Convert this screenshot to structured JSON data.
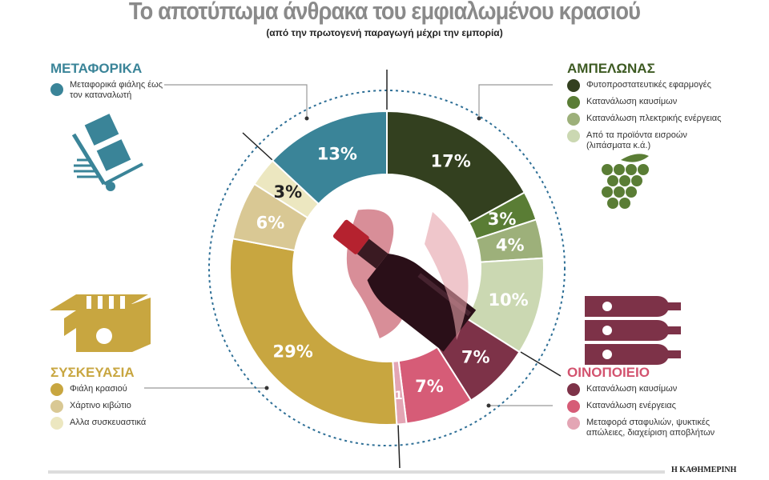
{
  "title": "Το αποτύπωμα άνθρακα του εμφιαλωμένου κρασιού",
  "subtitle": "(από την πρωτογενή παραγωγή μέχρι την εμπορία)",
  "brand": "Η ΚΑΘΗΜΕΡΙΝΗ",
  "legends": {
    "transport": {
      "heading": "ΜΕΤΑΦΟΡΙΚΑ",
      "color": "#3a8498",
      "items": [
        {
          "label": "Μεταφορικά φιάλης έως τον καταναλωτή",
          "color": "#3a8498"
        }
      ],
      "icon": "hand-truck-icon"
    },
    "vineyard": {
      "heading": "ΑΜΠΕΛΩΝΑΣ",
      "color": "#3d5a22",
      "items": [
        {
          "label": "Φυτοπροστατευτικές εφαρμογές",
          "color": "#33401f"
        },
        {
          "label": "Κατανάλωση καυσίμων",
          "color": "#5a7d35"
        },
        {
          "label": "Κατανάλωση πλεκτρικής ενέργειας",
          "color": "#9db07a"
        },
        {
          "label": "Από τα προϊόντα εισροών (λιπάσματα κ.ά.)",
          "color": "#cbd8b2"
        }
      ],
      "icon": "grapes-icon"
    },
    "packaging": {
      "heading": "ΣΥΣΚΕΥΑΣΙΑ",
      "color": "#c8a640",
      "items": [
        {
          "label": "Φιάλη κρασιού",
          "color": "#c8a640"
        },
        {
          "label": "Χάρτινο κιβώτιο",
          "color": "#d9c894"
        },
        {
          "label": "Αλλα συσκευαστικά",
          "color": "#ece7c0"
        }
      ],
      "icon": "wine-crate-icon"
    },
    "winery": {
      "heading": "ΟΙΝΟΠΟΙΕΙΟ",
      "color": "#d3536f",
      "items": [
        {
          "label": "Κατανάλωση καυσίμων",
          "color": "#7d3248"
        },
        {
          "label": "Κατανάλωση ενέργειας",
          "color": "#d65c77"
        },
        {
          "label": "Μεταφορά σταφυλιών, ψυκτικές απώλειες, διαχείριση αποβλήτων",
          "color": "#e3a5b4"
        }
      ],
      "icon": "wine-bottles-icon"
    }
  },
  "chart_data": {
    "type": "pie",
    "donut": true,
    "start": "top",
    "direction": "clockwise",
    "slices": [
      {
        "group": "ΑΜΠΕΛΩΝΑΣ",
        "label": "Φυτοπροστατευτικές εφαρμογές",
        "value": 17,
        "text": "17%",
        "color": "#33401f",
        "text_color": "#ffffff"
      },
      {
        "group": "ΑΜΠΕΛΩΝΑΣ",
        "label": "Κατανάλωση καυσίμων",
        "value": 3,
        "text": "3%",
        "color": "#5a7d35",
        "text_color": "#ffffff"
      },
      {
        "group": "ΑΜΠΕΛΩΝΑΣ",
        "label": "Κατανάλωση πλεκτρικής ενέργειας",
        "value": 4,
        "text": "4%",
        "color": "#9db07a",
        "text_color": "#ffffff"
      },
      {
        "group": "ΑΜΠΕΛΩΝΑΣ",
        "label": "Από τα προϊόντα εισροών (λιπάσματα κ.ά.)",
        "value": 10,
        "text": "10%",
        "color": "#cbd8b2",
        "text_color": "#ffffff"
      },
      {
        "group": "ΟΙΝΟΠΟΙΕΙΟ",
        "label": "Κατανάλωση καυσίμων",
        "value": 7,
        "text": "7%",
        "color": "#7d3248",
        "text_color": "#ffffff"
      },
      {
        "group": "ΟΙΝΟΠΟΙΕΙΟ",
        "label": "Κατανάλωση ενέργειας",
        "value": 7,
        "text": "7%",
        "color": "#d65c77",
        "text_color": "#ffffff"
      },
      {
        "group": "ΟΙΝΟΠΟΙΕΙΟ",
        "label": "Μεταφορά σταφυλιών, ψυκτικές απώλειες, διαχείριση αποβλήτων",
        "value": 1,
        "text": "1",
        "color": "#e3a5b4",
        "text_color": "#ffffff"
      },
      {
        "group": "ΣΥΣΚΕΥΑΣΙΑ",
        "label": "Φιάλη κρασιού",
        "value": 29,
        "text": "29%",
        "color": "#c8a640",
        "text_color": "#ffffff"
      },
      {
        "group": "ΣΥΣΚΕΥΑΣΙΑ",
        "label": "Χάρτινο κιβώτιο",
        "value": 6,
        "text": "6%",
        "color": "#d9c894",
        "text_color": "#ffffff"
      },
      {
        "group": "ΣΥΣΚΕΥΑΣΙΑ",
        "label": "Αλλα συσκευαστικά",
        "value": 3,
        "text": "3%",
        "color": "#ece7c0",
        "text_color": "#222222"
      },
      {
        "group": "ΜΕΤΑΦΟΡΙΚΑ",
        "label": "Μεταφορικά φιάλης έως τον καταναλωτή",
        "value": 13,
        "text": "13%",
        "color": "#3a8498",
        "text_color": "#ffffff"
      }
    ]
  }
}
